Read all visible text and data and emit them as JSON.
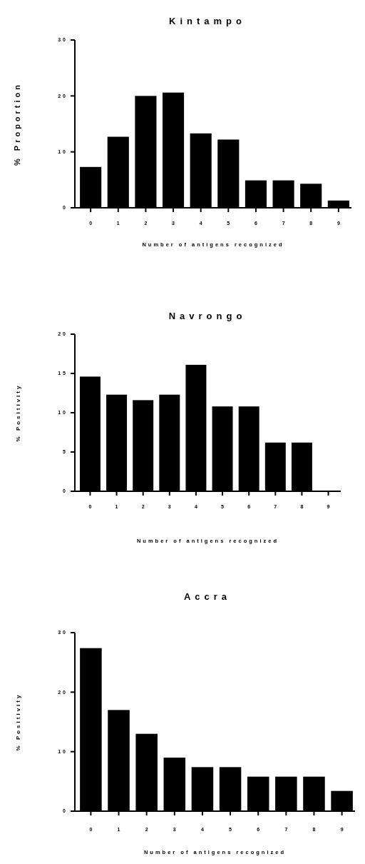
{
  "chart_data": [
    {
      "type": "bar",
      "title": "Kintampo",
      "xlabel": "Number of antigens recognized",
      "ylabel": "% Proportion",
      "categories": [
        "0",
        "1",
        "2",
        "3",
        "4",
        "5",
        "6",
        "7",
        "8",
        "9"
      ],
      "values": [
        7.3,
        12.7,
        20.0,
        20.6,
        13.3,
        12.2,
        4.9,
        4.9,
        4.3,
        1.3
      ],
      "color": "#000000",
      "ylim": [
        0,
        30
      ],
      "yticks": [
        0,
        10,
        20,
        30
      ]
    },
    {
      "type": "bar",
      "title": "Navrongo",
      "xlabel": "Number of antigens recognized",
      "ylabel": "% Positivity",
      "categories": [
        "0",
        "1",
        "2",
        "3",
        "4",
        "5",
        "6",
        "7",
        "8",
        "9"
      ],
      "values": [
        14.6,
        12.3,
        11.6,
        12.3,
        16.1,
        10.8,
        10.8,
        6.2,
        6.2,
        0
      ],
      "color": "#000000",
      "ylim": [
        0,
        20
      ],
      "yticks": [
        0,
        5,
        10,
        15,
        20
      ]
    },
    {
      "type": "bar",
      "title": "Accra",
      "xlabel": "Number of antigens recognized",
      "ylabel": "% Positivity",
      "categories": [
        "0",
        "1",
        "2",
        "3",
        "4",
        "5",
        "6",
        "7",
        "8",
        "9"
      ],
      "values": [
        27.4,
        17.0,
        13.0,
        9.0,
        7.4,
        7.4,
        5.8,
        5.8,
        5.8,
        3.4
      ],
      "color": "#000000",
      "ylim": [
        0,
        30
      ],
      "yticks": [
        0,
        10,
        20,
        30
      ]
    }
  ]
}
